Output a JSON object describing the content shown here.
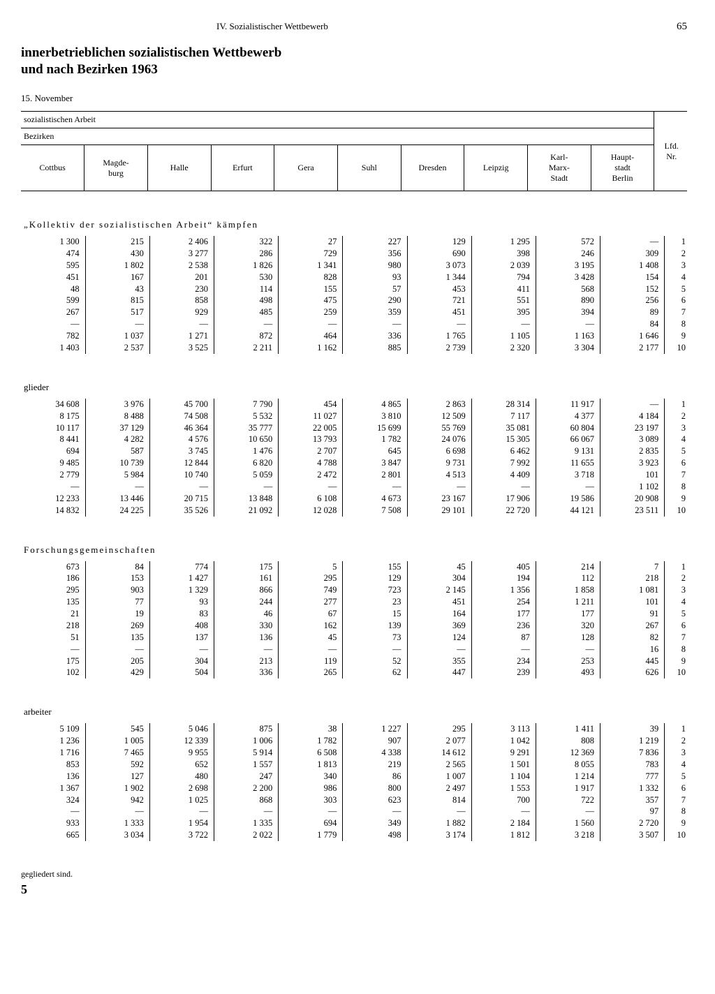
{
  "header": {
    "chapter": "IV. Sozialistischer Wettbewerb",
    "page": "65"
  },
  "title": {
    "line1": "innerbetrieblichen sozialistischen Wettbewerb",
    "line2": "und nach Bezirken 1963"
  },
  "date": "15. November",
  "head": {
    "row1": "sozialistischen Arbeit",
    "row2": "Bezirken",
    "lfd": "Lfd.\nNr.",
    "cols": [
      "Cottbus",
      "Magde-\nburg",
      "Halle",
      "Erfurt",
      "Gera",
      "Suhl",
      "Dresden",
      "Leipzig",
      "Karl-\nMarx-\nStadt",
      "Haupt-\nstadt\nBerlin"
    ]
  },
  "sections": [
    {
      "label": "„Kollektiv der sozialistischen Arbeit“ kämpfen",
      "spaced": true,
      "rows": [
        [
          "1 300",
          "215",
          "2 406",
          "322",
          "27",
          "227",
          "129",
          "1 295",
          "572",
          "—",
          "1"
        ],
        [
          "474",
          "430",
          "3 277",
          "286",
          "729",
          "356",
          "690",
          "398",
          "246",
          "309",
          "2"
        ],
        [
          "595",
          "1 802",
          "2 538",
          "1 826",
          "1 341",
          "980",
          "3 073",
          "2 039",
          "3 195",
          "1 408",
          "3"
        ],
        [
          "451",
          "167",
          "201",
          "530",
          "828",
          "93",
          "1 344",
          "794",
          "3 428",
          "154",
          "4"
        ],
        [
          "48",
          "43",
          "230",
          "114",
          "155",
          "57",
          "453",
          "411",
          "568",
          "152",
          "5"
        ],
        [
          "599",
          "815",
          "858",
          "498",
          "475",
          "290",
          "721",
          "551",
          "890",
          "256",
          "6"
        ],
        [
          "267",
          "517",
          "929",
          "485",
          "259",
          "359",
          "451",
          "395",
          "394",
          "89",
          "7"
        ],
        [
          "—",
          "—",
          "—",
          "—",
          "—",
          "—",
          "—",
          "—",
          "—",
          "84",
          "8"
        ],
        [
          "782",
          "1 037",
          "1 271",
          "872",
          "464",
          "336",
          "1 765",
          "1 105",
          "1 163",
          "1 646",
          "9"
        ],
        [
          "1 403",
          "2 537",
          "3 525",
          "2 211",
          "1 162",
          "885",
          "2 739",
          "2 320",
          "3 304",
          "2 177",
          "10"
        ]
      ]
    },
    {
      "label": "glieder",
      "spaced": false,
      "rows": [
        [
          "34 608",
          "3 976",
          "45 700",
          "7 790",
          "454",
          "4 865",
          "2 863",
          "28 314",
          "11 917",
          "—",
          "1"
        ],
        [
          "8 175",
          "8 488",
          "74 508",
          "5 532",
          "11 027",
          "3 810",
          "12 509",
          "7 117",
          "4 377",
          "4 184",
          "2"
        ],
        [
          "10 117",
          "37 129",
          "46 364",
          "35 777",
          "22 005",
          "15 699",
          "55 769",
          "35 081",
          "60 804",
          "23 197",
          "3"
        ],
        [
          "8 441",
          "4 282",
          "4 576",
          "10 650",
          "13 793",
          "1 782",
          "24 076",
          "15 305",
          "66 067",
          "3 089",
          "4"
        ],
        [
          "694",
          "587",
          "3 745",
          "1 476",
          "2 707",
          "645",
          "6 698",
          "6 462",
          "9 131",
          "2 835",
          "5"
        ],
        [
          "9 485",
          "10 739",
          "12 844",
          "6 820",
          "4 788",
          "3 847",
          "9 731",
          "7 992",
          "11 655",
          "3 923",
          "6"
        ],
        [
          "2 779",
          "5 984",
          "10 740",
          "5 059",
          "2 472",
          "2 801",
          "4 513",
          "4 409",
          "3 718",
          "101",
          "7"
        ],
        [
          "—",
          "—",
          "—",
          "—",
          "—",
          "—",
          "—",
          "—",
          "—",
          "1 102",
          "8"
        ],
        [
          "12 233",
          "13 446",
          "20 715",
          "13 848",
          "6 108",
          "4 673",
          "23 167",
          "17 906",
          "19 586",
          "20 908",
          "9"
        ],
        [
          "14 832",
          "24 225",
          "35 526",
          "21 092",
          "12 028",
          "7 508",
          "29 101",
          "22 720",
          "44 121",
          "23 511",
          "10"
        ]
      ]
    },
    {
      "label": "Forschungsgemeinschaften",
      "spaced": true,
      "rows": [
        [
          "673",
          "84",
          "774",
          "175",
          "5",
          "155",
          "45",
          "405",
          "214",
          "7",
          "1"
        ],
        [
          "186",
          "153",
          "1 427",
          "161",
          "295",
          "129",
          "304",
          "194",
          "112",
          "218",
          "2"
        ],
        [
          "295",
          "903",
          "1 329",
          "866",
          "749",
          "723",
          "2 145",
          "1 356",
          "1 858",
          "1 081",
          "3"
        ],
        [
          "135",
          "77",
          "93",
          "244",
          "277",
          "23",
          "451",
          "254",
          "1 211",
          "101",
          "4"
        ],
        [
          "21",
          "19",
          "83",
          "46",
          "67",
          "15",
          "164",
          "177",
          "177",
          "91",
          "5"
        ],
        [
          "218",
          "269",
          "408",
          "330",
          "162",
          "139",
          "369",
          "236",
          "320",
          "267",
          "6"
        ],
        [
          "51",
          "135",
          "137",
          "136",
          "45",
          "73",
          "124",
          "87",
          "128",
          "82",
          "7"
        ],
        [
          "—",
          "—",
          "—",
          "—",
          "—",
          "—",
          "—",
          "—",
          "—",
          "16",
          "8"
        ],
        [
          "175",
          "205",
          "304",
          "213",
          "119",
          "52",
          "355",
          "234",
          "253",
          "445",
          "9"
        ],
        [
          "102",
          "429",
          "504",
          "336",
          "265",
          "62",
          "447",
          "239",
          "493",
          "626",
          "10"
        ]
      ]
    },
    {
      "label": "arbeiter",
      "spaced": false,
      "rows": [
        [
          "5 109",
          "545",
          "5 046",
          "875",
          "38",
          "1 227",
          "295",
          "3 113",
          "1 411",
          "39",
          "1"
        ],
        [
          "1 236",
          "1 005",
          "12 339",
          "1 006",
          "1 782",
          "907",
          "2 077",
          "1 042",
          "808",
          "1 219",
          "2"
        ],
        [
          "1 716",
          "7 465",
          "9 955",
          "5 914",
          "6 508",
          "4 338",
          "14 612",
          "9 291",
          "12 369",
          "7 836",
          "3"
        ],
        [
          "853",
          "592",
          "652",
          "1 557",
          "1 813",
          "219",
          "2 565",
          "1 501",
          "8 055",
          "783",
          "4"
        ],
        [
          "136",
          "127",
          "480",
          "247",
          "340",
          "86",
          "1 007",
          "1 104",
          "1 214",
          "777",
          "5"
        ],
        [
          "1 367",
          "1 902",
          "2 698",
          "2 200",
          "986",
          "800",
          "2 497",
          "1 553",
          "1 917",
          "1 332",
          "6"
        ],
        [
          "324",
          "942",
          "1 025",
          "868",
          "303",
          "623",
          "814",
          "700",
          "722",
          "357",
          "7"
        ],
        [
          "—",
          "—",
          "—",
          "—",
          "—",
          "—",
          "—",
          "—",
          "—",
          "97",
          "8"
        ],
        [
          "933",
          "1 333",
          "1 954",
          "1 335",
          "694",
          "349",
          "1 882",
          "2 184",
          "1 560",
          "2 720",
          "9"
        ],
        [
          "665",
          "3 034",
          "3 722",
          "2 022",
          "1 779",
          "498",
          "3 174",
          "1 812",
          "3 218",
          "3 507",
          "10"
        ]
      ]
    }
  ],
  "footer": {
    "note": "gegliedert sind.",
    "sig": "5"
  }
}
